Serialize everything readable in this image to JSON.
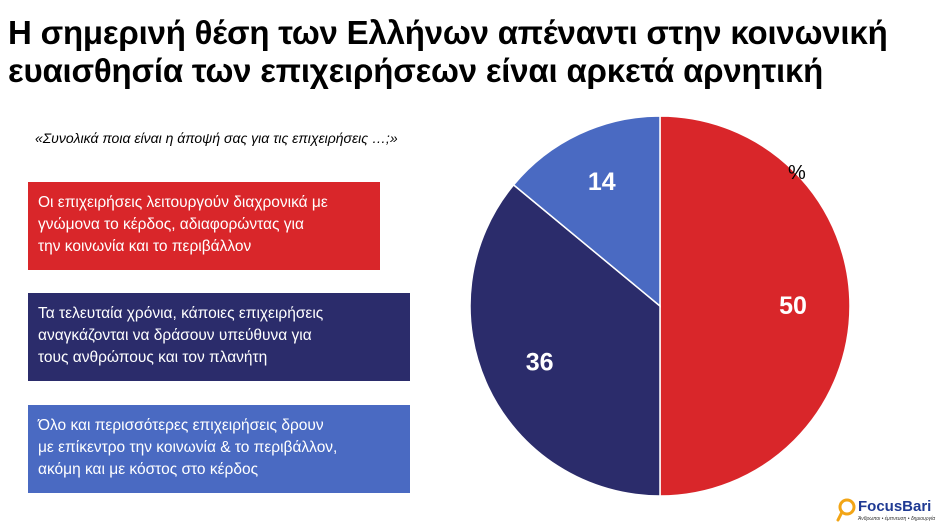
{
  "title_lines": [
    "Η σημερινή θέση των Ελλήνων απέναντι στην κοινωνική",
    "ευαισθησία των επιχειρήσεων είναι αρκετά αρνητική"
  ],
  "question": "«Συνολικά ποια είναι η άποψή σας για τις επιχειρήσεις …;»",
  "legend": [
    {
      "color": "#d9262a",
      "lines": [
        "Οι επιχειρήσεις λειτουργούν διαχρονικά με",
        "γνώμονα το κέρδος, αδιαφορώντας για",
        "την κοινωνία και το περιβάλλον"
      ]
    },
    {
      "color": "#2b2c6b",
      "lines": [
        "Τα τελευταία χρόνια, κάποιες  επιχειρήσεις",
        "αναγκάζονται  να δράσουν υπεύθυνα για",
        "τους ανθρώπους  και  τον πλανήτη"
      ]
    },
    {
      "color": "#4a6ac2",
      "lines": [
        "Όλο και περισσότερες  επιχειρήσεις  δρουν",
        "με επίκεντρο την κοινωνία & το περιβάλλον,",
        "ακόμη και με κόστος στο κέρδος"
      ]
    }
  ],
  "chart_data": {
    "type": "pie",
    "unit": "%",
    "start": "12 o'clock",
    "direction": "clockwise",
    "slices": [
      {
        "label": "50",
        "value": 50,
        "color": "#d9262a"
      },
      {
        "label": "36",
        "value": 36,
        "color": "#2b2c6b"
      },
      {
        "label": "14",
        "value": 14,
        "color": "#4a6ac2"
      }
    ]
  },
  "logo": {
    "name": "FocusBari",
    "tagline": "Άνθρωποι • έμπνευση • δημιουργία"
  }
}
